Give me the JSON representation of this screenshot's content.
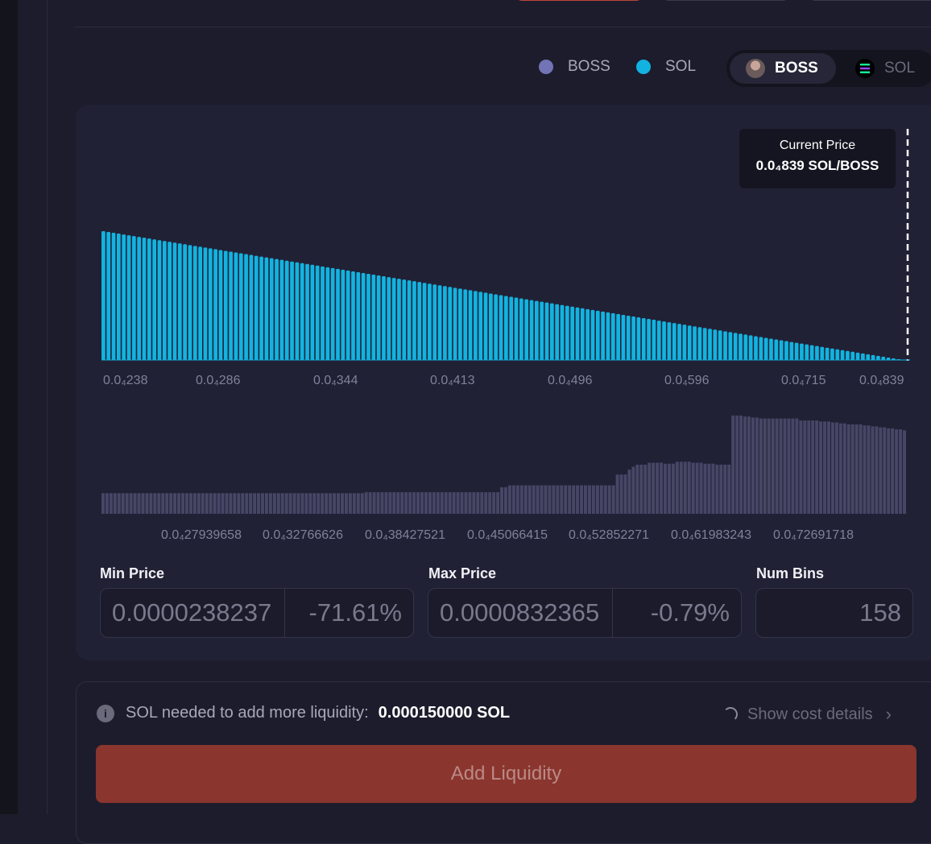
{
  "legend": {
    "items": [
      {
        "label": "BOSS",
        "color": "#7274b5"
      },
      {
        "label": "SOL",
        "color": "#12b3e0"
      }
    ]
  },
  "token_toggle": {
    "options": [
      {
        "label": "BOSS",
        "selected": true
      },
      {
        "label": "SOL",
        "selected": false
      }
    ]
  },
  "current_price": {
    "label": "Current Price",
    "value": "0.0₄839 SOL/BOSS"
  },
  "chart_data": [
    {
      "type": "bar",
      "series": [
        {
          "values_start": 100,
          "values_end": 0,
          "bins": 158,
          "color": "#12b3e0"
        }
      ],
      "x_tick_labels": [
        "0.0₄238",
        "0.0₄286",
        "0.0₄344",
        "0.0₄413",
        "0.0₄496",
        "0.0₄596",
        "0.0₄715",
        "0.0₄839"
      ],
      "current_price_marker": "0.0₄839"
    },
    {
      "type": "bar",
      "values": [
        21,
        21,
        21,
        21,
        21,
        21,
        21,
        21,
        21,
        21,
        21,
        21,
        21,
        21,
        21,
        21,
        21,
        21,
        21,
        21,
        21,
        21,
        21,
        21,
        21,
        21,
        21,
        21,
        21,
        21,
        21,
        21,
        21,
        21,
        21,
        21,
        21,
        21,
        21,
        21,
        21,
        21,
        21,
        21,
        21,
        21,
        21,
        21,
        21,
        21,
        21,
        21,
        21,
        21,
        21,
        21,
        21,
        21,
        21,
        21,
        21,
        21,
        21,
        21,
        21,
        21,
        22,
        22,
        22,
        22,
        22,
        22,
        22,
        22,
        22,
        22,
        22,
        22,
        22,
        22,
        22,
        22,
        22,
        22,
        22,
        22,
        22,
        22,
        22,
        22,
        22,
        22,
        22,
        22,
        22,
        22,
        22,
        22,
        22,
        22,
        27,
        27,
        29,
        29,
        29,
        29,
        29,
        29,
        29,
        29,
        29,
        29,
        29,
        29,
        29,
        29,
        29,
        29,
        29,
        29,
        29,
        29,
        29,
        29,
        29,
        29,
        29,
        29,
        29,
        40,
        40,
        40,
        45,
        48,
        50,
        50,
        50,
        52,
        52,
        52,
        52,
        51,
        51,
        51,
        53,
        53,
        53,
        53,
        52,
        52,
        52,
        51,
        51,
        51,
        50,
        50,
        50,
        50,
        100,
        100,
        100,
        99,
        99,
        98,
        98,
        97,
        97,
        97,
        97,
        97,
        97,
        97,
        97,
        97,
        97,
        95,
        95,
        95,
        95,
        95,
        94,
        94,
        94,
        93,
        93,
        92,
        92,
        91,
        91,
        91,
        91,
        90,
        90,
        89,
        89,
        88,
        88,
        87,
        87,
        86,
        86,
        85
      ],
      "x_tick_labels": [
        "0.0₄27939658",
        "0.0₄32766626",
        "0.0₄38427521",
        "0.0₄45066415",
        "0.0₄52852271",
        "0.0₄61983243",
        "0.0₄72691718"
      ],
      "color": "#464666"
    }
  ],
  "min_price": {
    "label": "Min Price",
    "value": "0.0000238237",
    "percent": "-71.61%"
  },
  "max_price": {
    "label": "Max Price",
    "value": "0.0000832365",
    "percent": "-0.79%"
  },
  "num_bins": {
    "label": "Num Bins",
    "value": "158"
  },
  "info": {
    "text": "SOL needed to add more liquidity:",
    "amount": "0.000150000 SOL",
    "link": "Show cost details"
  },
  "add_button": {
    "label": "Add Liquidity"
  }
}
